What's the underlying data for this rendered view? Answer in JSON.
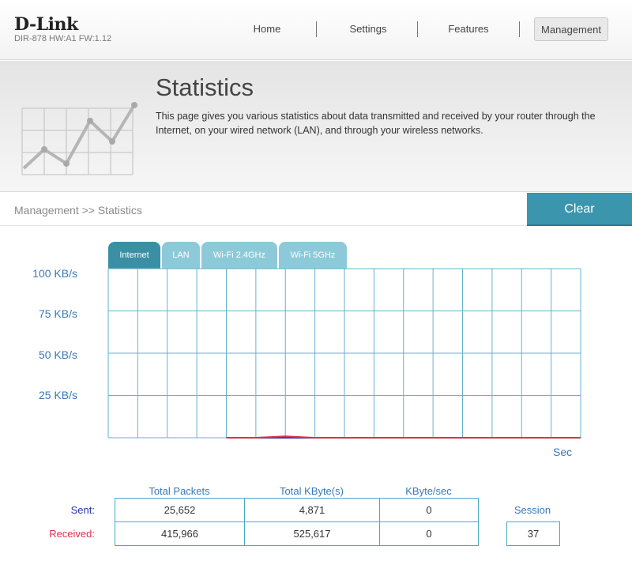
{
  "brand": {
    "logo": "D-Link",
    "model": "DIR-878 HW:A1 FW:1.12"
  },
  "nav": {
    "items": [
      "Home",
      "Settings",
      "Features",
      "Management"
    ],
    "active": "Management"
  },
  "banner": {
    "title": "Statistics",
    "description": "This page gives you various statistics about data transmitted and received by your router through the Internet, on your wired network (LAN), and through your wireless networks."
  },
  "breadcrumb": "Management >> Statistics",
  "clear_label": "Clear",
  "tabs": [
    "Internet",
    "LAN",
    "Wi-Fi 2.4GHz",
    "Wi-Fi 5GHz"
  ],
  "active_tab": "Internet",
  "colors": {
    "accent": "#3b96ad",
    "tab_inactive": "#8dcad9",
    "grid": "#63b3cf",
    "axis_text": "#3a79b8",
    "sent": "#2a34a8",
    "received": "#d9334a"
  },
  "chart_data": {
    "type": "line",
    "ylabel_ticks": [
      "100 KB/s",
      "75 KB/s",
      "50 KB/s",
      "25 KB/s"
    ],
    "ylim": [
      0,
      100
    ],
    "xlabel": "Sec",
    "x": [
      0,
      1,
      2,
      3,
      4,
      5,
      6,
      7,
      8,
      9,
      10,
      11,
      12,
      13,
      14,
      15,
      16
    ],
    "series": [
      {
        "name": "Sent",
        "color": "#2a34a8",
        "values": [
          null,
          null,
          null,
          null,
          0,
          0,
          0,
          0,
          0,
          0,
          0,
          0,
          0,
          0,
          0,
          0,
          0
        ]
      },
      {
        "name": "Received",
        "color": "#d9334a",
        "values": [
          null,
          null,
          null,
          null,
          0,
          0,
          0.8,
          0,
          0,
          0,
          0,
          0,
          0,
          0,
          0,
          0,
          0
        ]
      }
    ],
    "grid": true
  },
  "stats": {
    "headers": [
      "Total Packets",
      "Total KByte(s)",
      "KByte/sec"
    ],
    "rows": [
      {
        "label": "Sent:",
        "color": "#2a34a8",
        "values": [
          "25,652",
          "4,871",
          "0"
        ]
      },
      {
        "label": "Received:",
        "color": "#d9334a",
        "values": [
          "415,966",
          "525,617",
          "0"
        ]
      }
    ],
    "session_label": "Session",
    "session_value": "37"
  }
}
